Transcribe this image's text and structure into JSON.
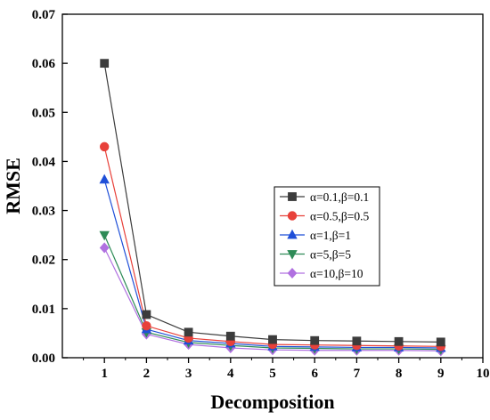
{
  "chart_data": {
    "type": "line",
    "title": "",
    "xlabel": "Decomposition",
    "ylabel": "RMSE",
    "xlim": [
      0,
      10
    ],
    "ylim": [
      0,
      0.07
    ],
    "x_ticks": [
      "1",
      "2",
      "3",
      "4",
      "5",
      "6",
      "7",
      "8",
      "9",
      "10"
    ],
    "y_ticks": [
      "0.00",
      "0.01",
      "0.02",
      "0.03",
      "0.04",
      "0.05",
      "0.06",
      "0.07"
    ],
    "x": [
      1,
      2,
      3,
      4,
      5,
      6,
      7,
      8,
      9
    ],
    "grid": false,
    "legend_position": "right-middle",
    "series": [
      {
        "name": "α=0.1,β=0.1",
        "marker": "square",
        "color": "#3c3c3c",
        "values": [
          0.06,
          0.0088,
          0.0052,
          0.0044,
          0.0037,
          0.0035,
          0.0034,
          0.0033,
          0.0032
        ]
      },
      {
        "name": "α=0.5,β=0.5",
        "marker": "circle",
        "color": "#e8413a",
        "values": [
          0.043,
          0.0065,
          0.004,
          0.0033,
          0.0027,
          0.0026,
          0.0025,
          0.0024,
          0.0023
        ]
      },
      {
        "name": "α=1,β=1",
        "marker": "triangle-up",
        "color": "#1f4fd8",
        "values": [
          0.0363,
          0.0058,
          0.0035,
          0.0029,
          0.0023,
          0.0022,
          0.0021,
          0.0021,
          0.002
        ]
      },
      {
        "name": "α=5,β=5",
        "marker": "triangle-down",
        "color": "#2e8b57",
        "values": [
          0.025,
          0.0052,
          0.0031,
          0.0025,
          0.002,
          0.0019,
          0.0018,
          0.0018,
          0.0017
        ]
      },
      {
        "name": "α=10,β=10",
        "marker": "diamond",
        "color": "#b070e0",
        "values": [
          0.0224,
          0.0048,
          0.0027,
          0.002,
          0.0016,
          0.0015,
          0.0015,
          0.0015,
          0.0014
        ]
      }
    ]
  }
}
